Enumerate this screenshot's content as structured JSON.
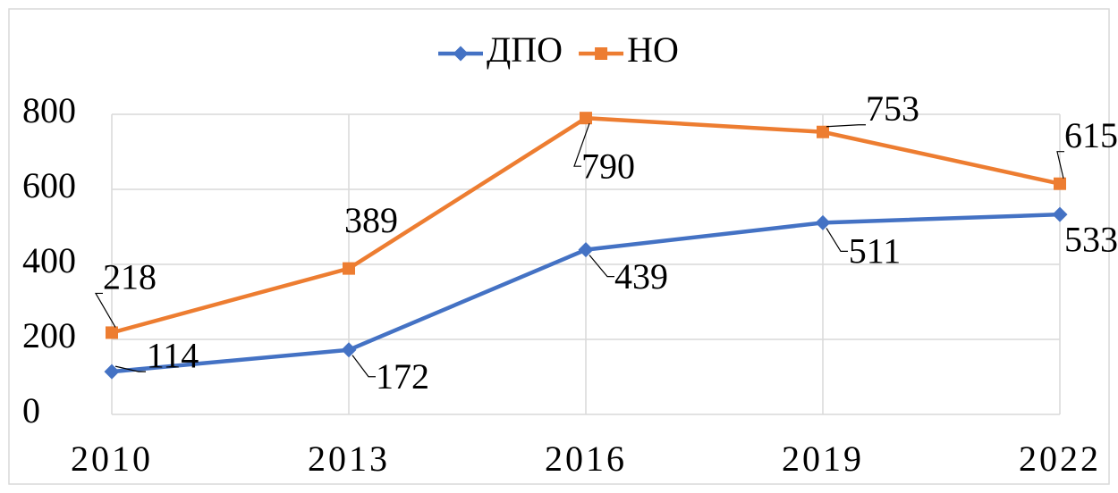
{
  "chart_data": {
    "type": "line",
    "categories": [
      "2010",
      "2013",
      "2016",
      "2019",
      "2022"
    ],
    "series": [
      {
        "name": "ДПО",
        "color": "#4472c4",
        "values": [
          114,
          172,
          439,
          511,
          533
        ]
      },
      {
        "name": "НО",
        "color": "#ed7d31",
        "values": [
          218,
          389,
          790,
          753,
          615
        ]
      }
    ],
    "ylim": [
      0,
      800
    ],
    "yticks": [
      0,
      200,
      400,
      600,
      800
    ],
    "grid": true,
    "legend": "top"
  }
}
